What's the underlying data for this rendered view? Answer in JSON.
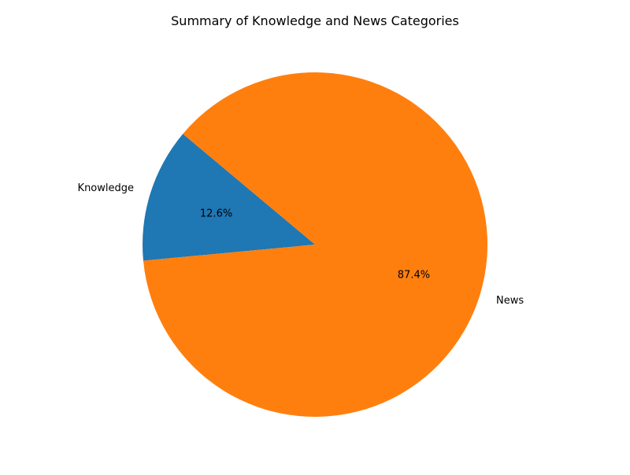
{
  "chart_data": {
    "type": "pie",
    "title": "Summary of Knowledge and News Categories",
    "categories": [
      "Knowledge",
      "News"
    ],
    "values": [
      12.6,
      87.4
    ],
    "value_labels": [
      "12.6%",
      "87.4%"
    ],
    "colors": [
      "#1f77b4",
      "#ff7f0e"
    ],
    "start_angle_deg": 140,
    "direction": "counterclockwise",
    "legend": "none"
  }
}
